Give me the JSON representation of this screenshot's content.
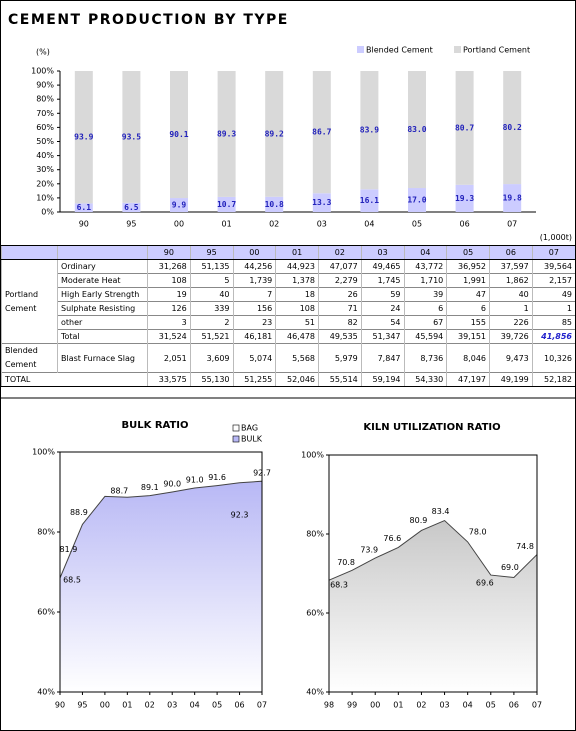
{
  "header": {
    "title": "CEMENT PRODUCTION BY TYPE"
  },
  "chart_data": [
    {
      "type": "bar",
      "stacked": true,
      "y_unit_label": "(%)",
      "legend": "top-right",
      "categories": [
        "90",
        "95",
        "00",
        "01",
        "02",
        "03",
        "04",
        "05",
        "06",
        "07"
      ],
      "series": [
        {
          "name": "Blended Cement",
          "color": "#ccccff",
          "values": [
            6.1,
            6.5,
            9.9,
            10.7,
            10.8,
            13.3,
            16.1,
            17.0,
            19.3,
            19.8
          ],
          "value_labels": [
            "6.1",
            "6.5",
            "9.9",
            "10.7",
            "10.8",
            "13.3",
            "16.1",
            "17.0",
            "19.3",
            "19.8"
          ]
        },
        {
          "name": "Portland Cement",
          "color": "#d9d9d9",
          "values": [
            93.9,
            93.5,
            90.1,
            89.3,
            89.2,
            86.7,
            83.9,
            83.0,
            80.7,
            80.2
          ],
          "value_labels": [
            "93.9",
            "93.5",
            "90.1",
            "89.3",
            "89.2",
            "86.7",
            "83.9",
            "83.0",
            "80.7",
            "80.2"
          ]
        }
      ],
      "ylim": [
        0,
        100
      ],
      "yticks": [
        {
          "value": 0,
          "label": "0%"
        },
        {
          "value": 10,
          "label": "10%"
        },
        {
          "value": 20,
          "label": "20%"
        },
        {
          "value": 30,
          "label": "30%"
        },
        {
          "value": 40,
          "label": "40%"
        },
        {
          "value": 50,
          "label": "50%"
        },
        {
          "value": 60,
          "label": "60%"
        },
        {
          "value": 70,
          "label": "70%"
        },
        {
          "value": 80,
          "label": "80%"
        },
        {
          "value": 90,
          "label": "90%"
        },
        {
          "value": 100,
          "label": "100%"
        }
      ]
    },
    {
      "type": "area",
      "title": "BULK RATIO",
      "legend": "top-right",
      "categories": [
        "90",
        "95",
        "00",
        "01",
        "02",
        "03",
        "04",
        "05",
        "06",
        "07"
      ],
      "series": [
        {
          "name": "BAG",
          "color": "#ffffff"
        },
        {
          "name": "BULK",
          "color": "#b8b8f5",
          "values": [
            68.5,
            81.9,
            88.9,
            88.7,
            89.1,
            90.0,
            91.0,
            91.6,
            92.3,
            92.7
          ],
          "value_labels": [
            "68.5",
            "81.9",
            "88.9",
            "88.7",
            "89.1",
            "90.0",
            "91.0",
            "91.6",
            "92.3",
            "92.7"
          ]
        }
      ],
      "ylim": [
        40,
        100
      ],
      "yticks": [
        {
          "value": 40,
          "label": "40%"
        },
        {
          "value": 60,
          "label": "60%"
        },
        {
          "value": 80,
          "label": "80%"
        },
        {
          "value": 100,
          "label": "100%"
        }
      ]
    },
    {
      "type": "area",
      "title": "KILN UTILIZATION RATIO",
      "categories": [
        "98",
        "99",
        "00",
        "01",
        "02",
        "03",
        "04",
        "05",
        "06",
        "07"
      ],
      "series": [
        {
          "color": "#c8c8c8",
          "values": [
            68.3,
            70.8,
            73.9,
            76.6,
            80.9,
            83.4,
            78.0,
            69.6,
            69.0,
            74.8
          ],
          "value_labels": [
            "68.3",
            "70.8",
            "73.9",
            "76.6",
            "80.9",
            "83.4",
            "78.0",
            "69.6",
            "69.0",
            "74.8"
          ]
        }
      ],
      "ylim": [
        40,
        100
      ],
      "yticks": [
        {
          "value": 40,
          "label": "40%"
        },
        {
          "value": 60,
          "label": "60%"
        },
        {
          "value": 80,
          "label": "80%"
        },
        {
          "value": 100,
          "label": "100%"
        }
      ]
    }
  ],
  "table": {
    "unit": "(1,000t)",
    "columns": [
      "90",
      "95",
      "00",
      "01",
      "02",
      "03",
      "04",
      "05",
      "06",
      "07"
    ],
    "groups": [
      {
        "label": "Portland Cement",
        "rows": [
          {
            "label": "Ordinary",
            "cells": [
              "31,268",
              "51,135",
              "44,256",
              "44,923",
              "47,077",
              "49,465",
              "43,772",
              "36,952",
              "37,597",
              "39,564"
            ]
          },
          {
            "label": "Moderate Heat",
            "cells": [
              "108",
              "5",
              "1,739",
              "1,378",
              "2,279",
              "1,745",
              "1,710",
              "1,991",
              "1,862",
              "2,157"
            ]
          },
          {
            "label": "High Early Strength",
            "cells": [
              "19",
              "40",
              "7",
              "18",
              "26",
              "59",
              "39",
              "47",
              "40",
              "49"
            ]
          },
          {
            "label": "Sulphate Resisting",
            "cells": [
              "126",
              "339",
              "156",
              "108",
              "71",
              "24",
              "6",
              "6",
              "1",
              "1"
            ]
          },
          {
            "label": "other",
            "cells": [
              "3",
              "2",
              "23",
              "51",
              "82",
              "54",
              "67",
              "155",
              "226",
              "85"
            ]
          },
          {
            "label": "Total",
            "cells": [
              "31,524",
              "51,521",
              "46,181",
              "46,478",
              "49,535",
              "51,347",
              "45,594",
              "39,151",
              "39,726",
              "41,856"
            ]
          }
        ]
      },
      {
        "label": "Blended Cement",
        "rows": [
          {
            "label": "Blast Furnace Slag",
            "cells": [
              "2,051",
              "3,609",
              "5,074",
              "5,568",
              "5,979",
              "7,847",
              "8,736",
              "8,046",
              "9,473",
              "10,326"
            ]
          }
        ]
      }
    ],
    "total": {
      "label": "TOTAL",
      "cells": [
        "33,575",
        "55,130",
        "51,255",
        "52,046",
        "55,514",
        "59,194",
        "54,330",
        "47,197",
        "49,199",
        "52,182"
      ]
    }
  }
}
